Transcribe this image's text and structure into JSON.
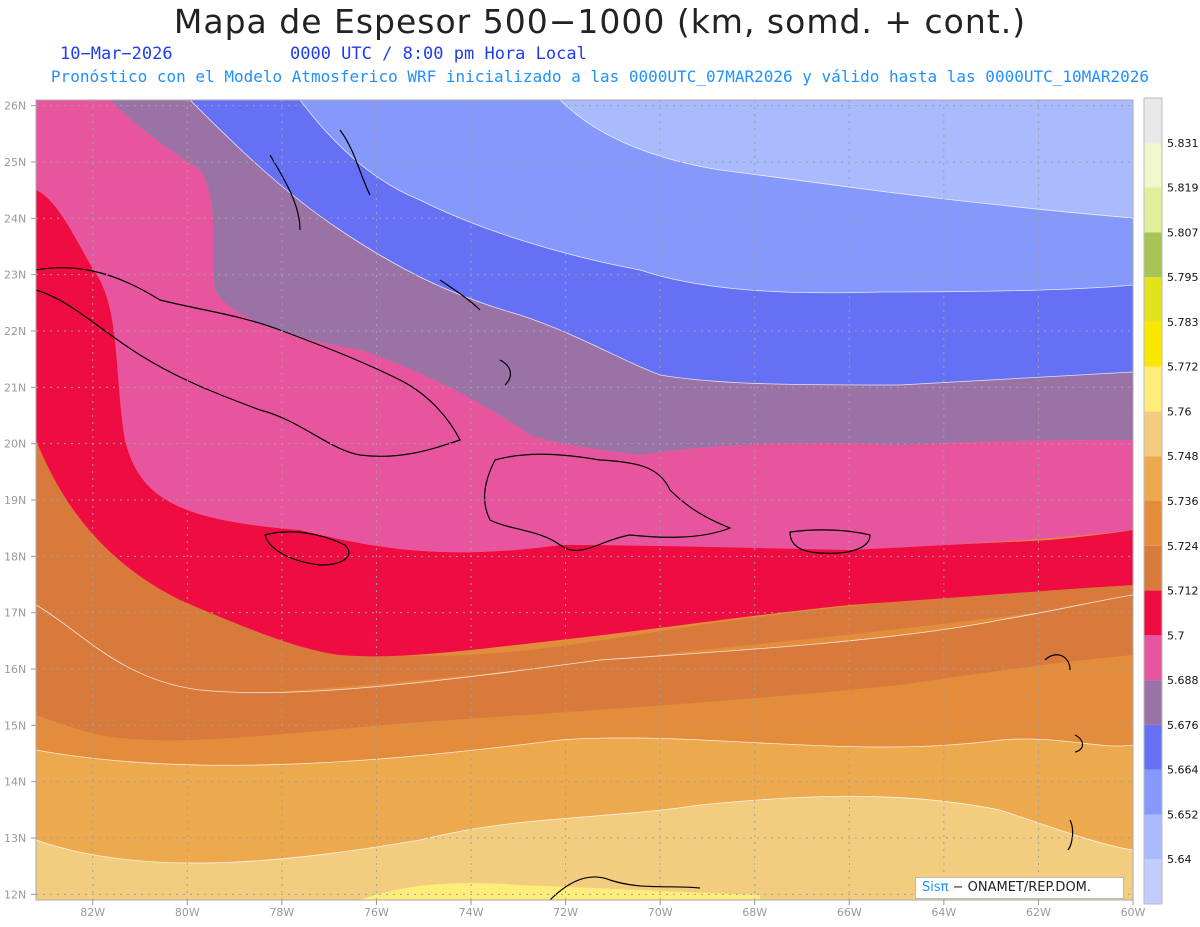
{
  "header": {
    "title": "Mapa de Espesor 500−1000 (km, somd. + cont.)",
    "date": "10−Mar−2026",
    "time": "0000 UTC / 8:00 pm Hora Local",
    "info": "Pronóstico con el Modelo Atmosferico WRF inicializado a las 0000UTC_07MAR2026 y válido hasta las  0000UTC_10MAR2026"
  },
  "axes": {
    "lat_labels": [
      "26N",
      "25N",
      "24N",
      "23N",
      "22N",
      "21N",
      "20N",
      "19N",
      "18N",
      "17N",
      "16N",
      "15N",
      "14N",
      "13N",
      "12N"
    ],
    "lat_values": [
      26,
      25,
      24,
      23,
      22,
      21,
      20,
      19,
      18,
      17,
      16,
      15,
      14,
      13,
      12
    ],
    "lon_labels": [
      "82W",
      "80W",
      "78W",
      "76W",
      "74W",
      "72W",
      "70W",
      "68W",
      "66W",
      "64W",
      "62W",
      "60W"
    ],
    "lon_values": [
      -82,
      -80,
      -78,
      -76,
      -74,
      -72,
      -70,
      -68,
      -66,
      -64,
      -62,
      -60
    ]
  },
  "colorbar": {
    "labels": [
      "5.64",
      "5.652",
      "5.664",
      "5.676",
      "5.688",
      "5.7",
      "5.712",
      "5.724",
      "5.736",
      "5.748",
      "5.76",
      "5.772",
      "5.783",
      "5.795",
      "5.807",
      "5.819",
      "5.831"
    ],
    "colors": [
      "#c3cdfd",
      "#a9bafd",
      "#8598fb",
      "#6670f5",
      "#9b72a6",
      "#e8559f",
      "#ef0c42",
      "#d97a3d",
      "#e38c3c",
      "#eda94e",
      "#f2cd7f",
      "#feec7b",
      "#fbe600",
      "#e2e31c",
      "#a8c458",
      "#e0ef98",
      "#f2f6cf",
      "#e8e8e8"
    ]
  },
  "credit": {
    "brand": "Sisπ",
    "text": "− ONAMET/REP.DOM."
  }
}
